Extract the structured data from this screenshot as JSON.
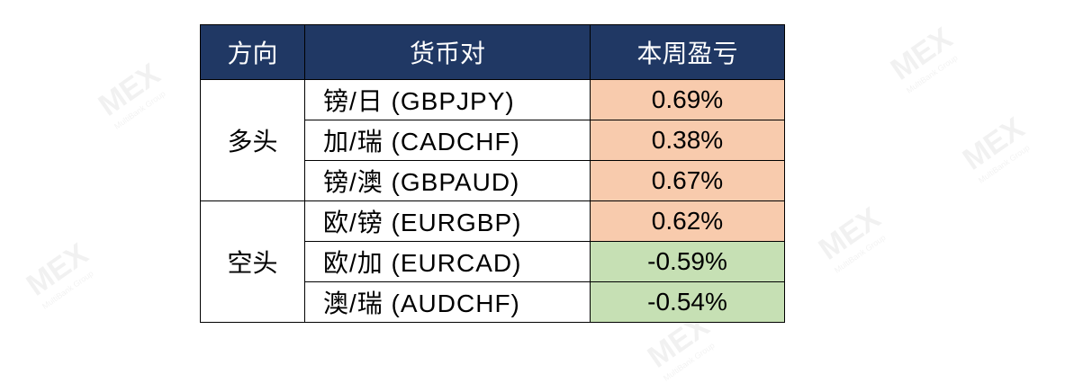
{
  "watermark": {
    "logo": "MEX",
    "tagline": "MultiBank Group"
  },
  "colors": {
    "header": "#203864",
    "positive": "#f8cbad",
    "negative": "#c6e0b4"
  },
  "table": {
    "headers": [
      "方向",
      "货币对",
      "本周盈亏"
    ],
    "groups": [
      {
        "direction": "多头",
        "rows": [
          {
            "pair": "镑/日 (GBPJPY)",
            "pnl": "0.69%"
          },
          {
            "pair": "加/瑞 (CADCHF)",
            "pnl": "0.38%"
          },
          {
            "pair": "镑/澳 (GBPAUD)",
            "pnl": "0.67%"
          }
        ]
      },
      {
        "direction": "空头",
        "rows": [
          {
            "pair": "欧/镑 (EURGBP)",
            "pnl": "0.62%"
          },
          {
            "pair": "欧/加 (EURCAD)",
            "pnl": "-0.59%"
          },
          {
            "pair": "澳/瑞 (AUDCHF)",
            "pnl": "-0.54%"
          }
        ]
      }
    ]
  }
}
